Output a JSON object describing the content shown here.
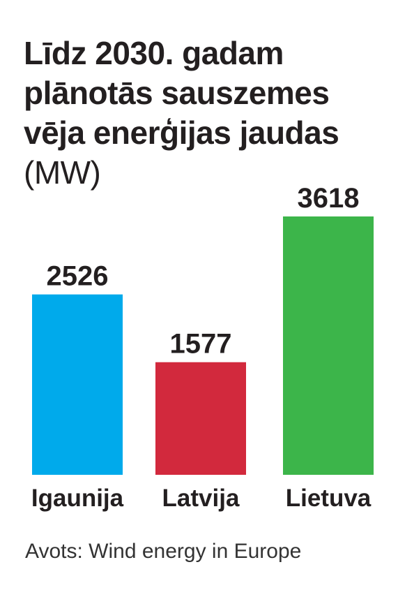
{
  "chart_data": {
    "type": "bar",
    "title": "Līdz 2030. gadam plānotās sauszemes vēja enerģijas jaudas",
    "unit": "(MW)",
    "categories": [
      "Igaunija",
      "Latvija",
      "Lietuva"
    ],
    "values": [
      2526,
      1577,
      3618
    ],
    "colors": [
      "#00aaeb",
      "#d2293d",
      "#3cb54a"
    ],
    "ylim": [
      0,
      3618
    ],
    "grid": false,
    "legend": "none"
  },
  "source": "Avots: Wind energy in Europe"
}
